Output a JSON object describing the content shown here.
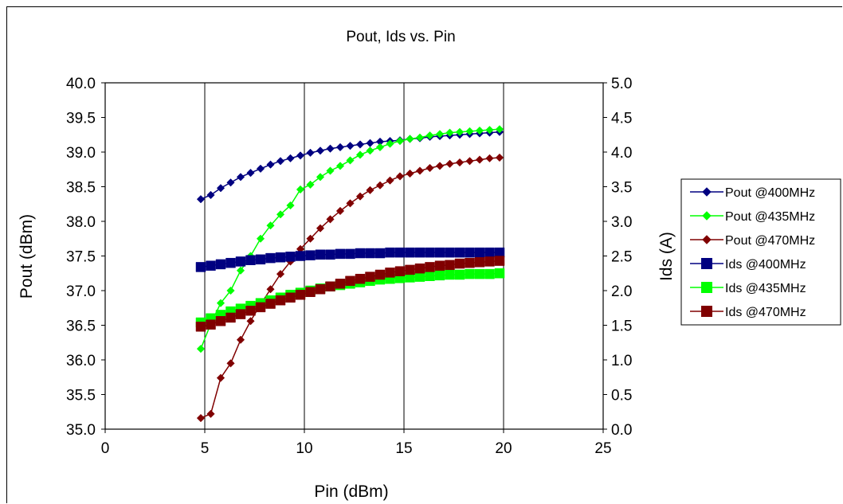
{
  "chart_data": {
    "type": "line",
    "title": "Pout, Ids vs. Pin",
    "xlabel": "Pin (dBm)",
    "ylabel": "Pout (dBm)",
    "y2label": "Ids (A)",
    "xlim": [
      0,
      25
    ],
    "ylim": [
      35.0,
      40.0
    ],
    "y2lim": [
      0.0,
      5.0
    ],
    "xticks": [
      "0",
      "5",
      "10",
      "15",
      "20",
      "25"
    ],
    "yticks": [
      "35.0",
      "35.5",
      "36.0",
      "36.5",
      "37.0",
      "37.5",
      "38.0",
      "38.5",
      "39.0",
      "39.5",
      "40.0"
    ],
    "y2ticks": [
      "0.0",
      "0.5",
      "1.0",
      "1.5",
      "2.0",
      "2.5",
      "3.0",
      "3.5",
      "4.0",
      "4.5",
      "5.0"
    ],
    "grid": "vertical",
    "legend": "right",
    "x": [
      4.8,
      5.3,
      5.8,
      6.3,
      6.8,
      7.3,
      7.8,
      8.3,
      8.8,
      9.3,
      9.8,
      10.3,
      10.8,
      11.3,
      11.8,
      12.3,
      12.8,
      13.3,
      13.8,
      14.3,
      14.8,
      15.3,
      15.8,
      16.3,
      16.8,
      17.3,
      17.8,
      18.3,
      18.8,
      19.3,
      19.8
    ],
    "series": [
      {
        "name": "Pout @400MHz",
        "axis": "left",
        "marker": "diamond",
        "color": "#000080",
        "values": [
          38.32,
          38.38,
          38.48,
          38.56,
          38.64,
          38.7,
          38.76,
          38.82,
          38.87,
          38.91,
          38.95,
          38.99,
          39.02,
          39.05,
          39.07,
          39.09,
          39.11,
          39.13,
          39.15,
          39.16,
          39.17,
          39.19,
          39.2,
          39.22,
          39.23,
          39.24,
          39.25,
          39.26,
          39.27,
          39.28,
          39.29
        ]
      },
      {
        "name": "Pout @435MHz",
        "axis": "left",
        "marker": "diamond",
        "color": "#00FF00",
        "values": [
          36.16,
          36.52,
          36.82,
          37.0,
          37.29,
          37.5,
          37.75,
          37.94,
          38.1,
          38.23,
          38.46,
          38.53,
          38.64,
          38.73,
          38.8,
          38.88,
          38.96,
          39.02,
          39.07,
          39.12,
          39.16,
          39.19,
          39.21,
          39.24,
          39.26,
          39.28,
          39.29,
          39.3,
          39.31,
          39.32,
          39.33
        ]
      },
      {
        "name": "Pout @470MHz",
        "axis": "left",
        "marker": "diamond",
        "color": "#800000",
        "values": [
          35.16,
          35.22,
          35.74,
          35.95,
          36.29,
          36.56,
          36.8,
          37.02,
          37.24,
          37.42,
          37.6,
          37.75,
          37.9,
          38.03,
          38.15,
          38.26,
          38.36,
          38.45,
          38.52,
          38.59,
          38.65,
          38.69,
          38.73,
          38.77,
          38.8,
          38.83,
          38.85,
          38.87,
          38.89,
          38.91,
          38.92
        ]
      },
      {
        "name": "Ids @400MHz",
        "axis": "right",
        "marker": "square",
        "color": "#000080",
        "values": [
          2.34,
          2.36,
          2.38,
          2.4,
          2.42,
          2.44,
          2.45,
          2.47,
          2.48,
          2.49,
          2.5,
          2.51,
          2.52,
          2.52,
          2.53,
          2.53,
          2.54,
          2.54,
          2.54,
          2.55,
          2.55,
          2.55,
          2.55,
          2.55,
          2.55,
          2.55,
          2.55,
          2.55,
          2.55,
          2.55,
          2.55
        ]
      },
      {
        "name": "Ids @435MHz",
        "axis": "right",
        "marker": "square",
        "color": "#00FF00",
        "values": [
          1.54,
          1.6,
          1.65,
          1.7,
          1.74,
          1.78,
          1.82,
          1.86,
          1.9,
          1.94,
          1.97,
          2.0,
          2.03,
          2.06,
          2.08,
          2.1,
          2.12,
          2.14,
          2.16,
          2.17,
          2.18,
          2.19,
          2.2,
          2.21,
          2.22,
          2.23,
          2.23,
          2.24,
          2.24,
          2.24,
          2.25
        ]
      },
      {
        "name": "Ids @470MHz",
        "axis": "right",
        "marker": "square",
        "color": "#800000",
        "values": [
          1.48,
          1.51,
          1.56,
          1.61,
          1.66,
          1.71,
          1.76,
          1.81,
          1.86,
          1.9,
          1.94,
          1.98,
          2.02,
          2.06,
          2.1,
          2.14,
          2.17,
          2.2,
          2.23,
          2.26,
          2.28,
          2.3,
          2.32,
          2.34,
          2.36,
          2.37,
          2.39,
          2.4,
          2.41,
          2.42,
          2.43
        ]
      }
    ]
  }
}
